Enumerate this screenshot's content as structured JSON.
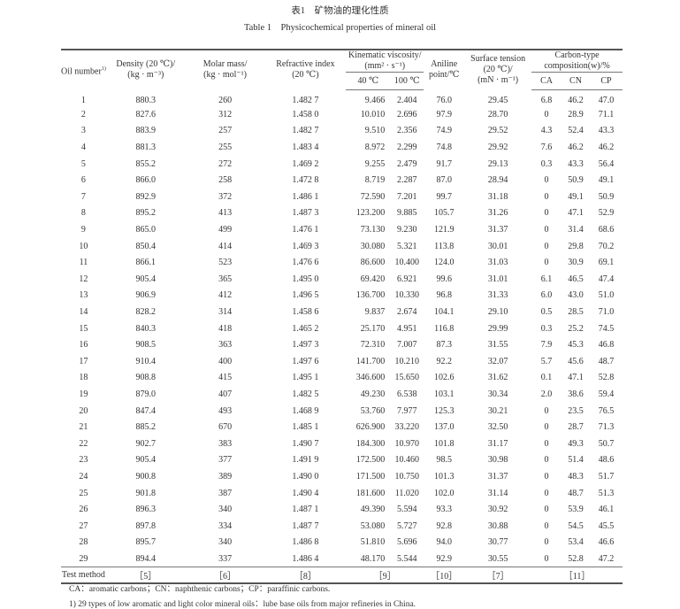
{
  "title_cn": "表1　矿物油的理化性质",
  "title_en": "Table 1　Physicochemical properties of mineral oil",
  "headers": {
    "oil_number": "Oil number",
    "oil_number_note": "1)",
    "density": "Density (20 ℃)/",
    "density_unit": "(kg · m⁻³)",
    "molar": "Molar mass/",
    "molar_unit": "(kg · mol⁻¹)",
    "refractive": "Refractive index",
    "refractive_unit": "(20 ℃)",
    "viscosity": "Kinematic viscosity/",
    "viscosity_unit": "(mm² · s⁻¹)",
    "v40": "40 ℃",
    "v100": "100 ℃",
    "aniline": "Aniline",
    "aniline_unit": "point/℃",
    "surface": "Surface tension",
    "surface_cond": "(20 ℃)/",
    "surface_unit": "(mN · m⁻¹)",
    "carbon": "Carbon-type",
    "carbon_unit": "composition(w)/%",
    "ca": "CA",
    "cn": "CN",
    "cp": "CP"
  },
  "rows": [
    [
      "1",
      "880.3",
      "260",
      "1.482 7",
      "9.466",
      "2.404",
      "76.0",
      "29.45",
      "6.8",
      "46.2",
      "47.0"
    ],
    [
      "2",
      "827.6",
      "312",
      "1.458 0",
      "10.010",
      "2.696",
      "97.9",
      "28.70",
      "0",
      "28.9",
      "71.1"
    ],
    [
      "3",
      "883.9",
      "257",
      "1.482 7",
      "9.510",
      "2.356",
      "74.9",
      "29.52",
      "4.3",
      "52.4",
      "43.3"
    ],
    [
      "4",
      "881.3",
      "255",
      "1.483 4",
      "8.972",
      "2.299",
      "74.8",
      "29.92",
      "7.6",
      "46.2",
      "46.2"
    ],
    [
      "5",
      "855.2",
      "272",
      "1.469 2",
      "9.255",
      "2.479",
      "91.7",
      "29.13",
      "0.3",
      "43.3",
      "56.4"
    ],
    [
      "6",
      "866.0",
      "258",
      "1.472 8",
      "8.719",
      "2.287",
      "87.0",
      "28.94",
      "0",
      "50.9",
      "49.1"
    ],
    [
      "7",
      "892.9",
      "372",
      "1.486 1",
      "72.590",
      "7.201",
      "99.7",
      "31.18",
      "0",
      "49.1",
      "50.9"
    ],
    [
      "8",
      "895.2",
      "413",
      "1.487 3",
      "123.200",
      "9.885",
      "105.7",
      "31.26",
      "0",
      "47.1",
      "52.9"
    ],
    [
      "9",
      "865.0",
      "499",
      "1.476 1",
      "73.130",
      "9.230",
      "121.9",
      "31.37",
      "0",
      "31.4",
      "68.6"
    ],
    [
      "10",
      "850.4",
      "414",
      "1.469 3",
      "30.080",
      "5.321",
      "113.8",
      "30.01",
      "0",
      "29.8",
      "70.2"
    ],
    [
      "11",
      "866.1",
      "523",
      "1.476 6",
      "86.600",
      "10.400",
      "124.0",
      "31.03",
      "0",
      "30.9",
      "69.1"
    ],
    [
      "12",
      "905.4",
      "365",
      "1.495 0",
      "69.420",
      "6.921",
      "99.6",
      "31.01",
      "6.1",
      "46.5",
      "47.4"
    ],
    [
      "13",
      "906.9",
      "412",
      "1.496 5",
      "136.700",
      "10.330",
      "96.8",
      "31.33",
      "6.0",
      "43.0",
      "51.0"
    ],
    [
      "14",
      "828.2",
      "314",
      "1.458 6",
      "9.837",
      "2.674",
      "104.1",
      "29.10",
      "0.5",
      "28.5",
      "71.0"
    ],
    [
      "15",
      "840.3",
      "418",
      "1.465 2",
      "25.170",
      "4.951",
      "116.8",
      "29.99",
      "0.3",
      "25.2",
      "74.5"
    ],
    [
      "16",
      "908.5",
      "363",
      "1.497 3",
      "72.310",
      "7.007",
      "87.3",
      "31.55",
      "7.9",
      "45.3",
      "46.8"
    ],
    [
      "17",
      "910.4",
      "400",
      "1.497 6",
      "141.700",
      "10.210",
      "92.2",
      "32.07",
      "5.7",
      "45.6",
      "48.7"
    ],
    [
      "18",
      "908.8",
      "415",
      "1.495 1",
      "346.600",
      "15.650",
      "102.6",
      "31.62",
      "0.1",
      "47.1",
      "52.8"
    ],
    [
      "19",
      "879.0",
      "407",
      "1.482 5",
      "49.230",
      "6.538",
      "103.1",
      "30.34",
      "2.0",
      "38.6",
      "59.4"
    ],
    [
      "20",
      "847.4",
      "493",
      "1.468 9",
      "53.760",
      "7.977",
      "125.3",
      "30.21",
      "0",
      "23.5",
      "76.5"
    ],
    [
      "21",
      "885.2",
      "670",
      "1.485 1",
      "626.900",
      "33.220",
      "137.0",
      "32.50",
      "0",
      "28.7",
      "71.3"
    ],
    [
      "22",
      "902.7",
      "383",
      "1.490 7",
      "184.300",
      "10.970",
      "101.8",
      "31.17",
      "0",
      "49.3",
      "50.7"
    ],
    [
      "23",
      "905.4",
      "377",
      "1.491 9",
      "172.500",
      "10.460",
      "98.5",
      "30.98",
      "0",
      "51.4",
      "48.6"
    ],
    [
      "24",
      "900.8",
      "389",
      "1.490 0",
      "171.500",
      "10.750",
      "101.3",
      "31.37",
      "0",
      "48.3",
      "51.7"
    ],
    [
      "25",
      "901.8",
      "387",
      "1.490 4",
      "181.600",
      "11.020",
      "102.0",
      "31.14",
      "0",
      "48.7",
      "51.3"
    ],
    [
      "26",
      "896.3",
      "340",
      "1.487 1",
      "49.390",
      "5.594",
      "93.3",
      "30.92",
      "0",
      "53.9",
      "46.1"
    ],
    [
      "27",
      "897.8",
      "334",
      "1.487 7",
      "53.080",
      "5.727",
      "92.8",
      "30.88",
      "0",
      "54.5",
      "45.5"
    ],
    [
      "28",
      "895.7",
      "340",
      "1.486 8",
      "51.810",
      "5.696",
      "94.0",
      "30.77",
      "0",
      "53.4",
      "46.6"
    ],
    [
      "29",
      "894.4",
      "337",
      "1.486 4",
      "48.170",
      "5.544",
      "92.9",
      "30.55",
      "0",
      "52.8",
      "47.2"
    ]
  ],
  "test_method": {
    "label": "Test method",
    "density": "［5］",
    "molar": "［6］",
    "refractive": "［8］",
    "viscosity": "［9］",
    "aniline": "［10］",
    "surface": "［7］",
    "carbon": "［11］"
  },
  "notes": [
    "CA：aromatic carbons；CN：naphthenic carbons；CP：paraffinic carbons.",
    "1)  29 types of low aromatic and light color mineral oils：lube base oils from major refineries in China."
  ]
}
